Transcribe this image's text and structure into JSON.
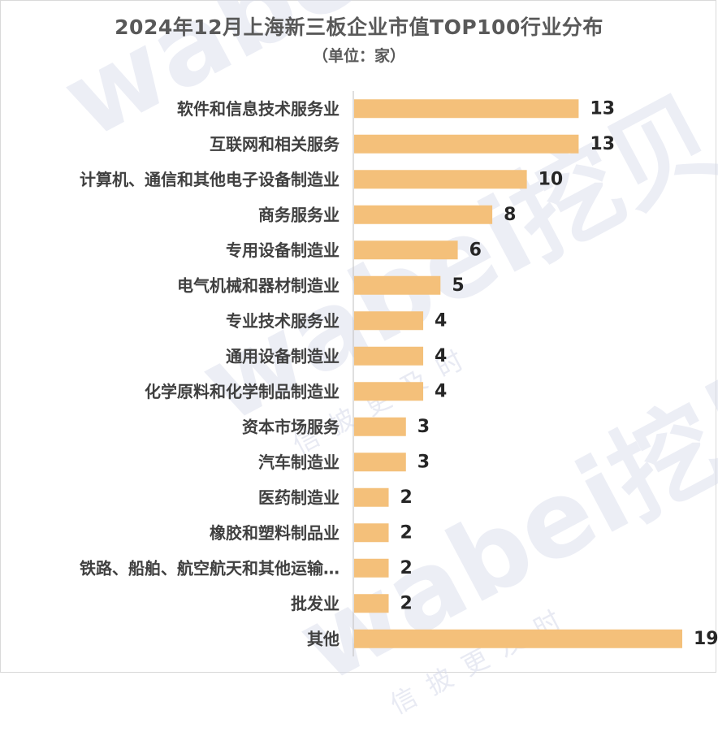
{
  "title": "2024年12月上海新三板企业市值TOP100行业分布",
  "subtitle": "（单位：家）",
  "watermark": {
    "brand": "wabei挖贝",
    "slogan": "信披更及时"
  },
  "colors": {
    "bar": "#f4c07a",
    "label": "#404040",
    "value": "#262626",
    "axis": "#bfbfbf"
  },
  "chart_data": {
    "type": "bar",
    "orientation": "horizontal",
    "categories": [
      "软件和信息技术服务业",
      "互联网和相关服务",
      "计算机、通信和其他电子设备制造业",
      "商务服务业",
      "专用设备制造业",
      "电气机械和器材制造业",
      "专业技术服务业",
      "通用设备制造业",
      "化学原料和化学制品制造业",
      "资本市场服务",
      "汽车制造业",
      "医药制造业",
      "橡胶和塑料制品业",
      "铁路、船舶、航空航天和其他运输…",
      "批发业",
      "其他"
    ],
    "values": [
      13,
      13,
      10,
      8,
      6,
      5,
      4,
      4,
      4,
      3,
      3,
      2,
      2,
      2,
      2,
      19
    ],
    "title": "2024年12月上海新三板企业市值TOP100行业分布",
    "xlabel": "",
    "ylabel": "",
    "xlim": [
      0,
      19
    ],
    "grid": false,
    "data_labels": true
  }
}
